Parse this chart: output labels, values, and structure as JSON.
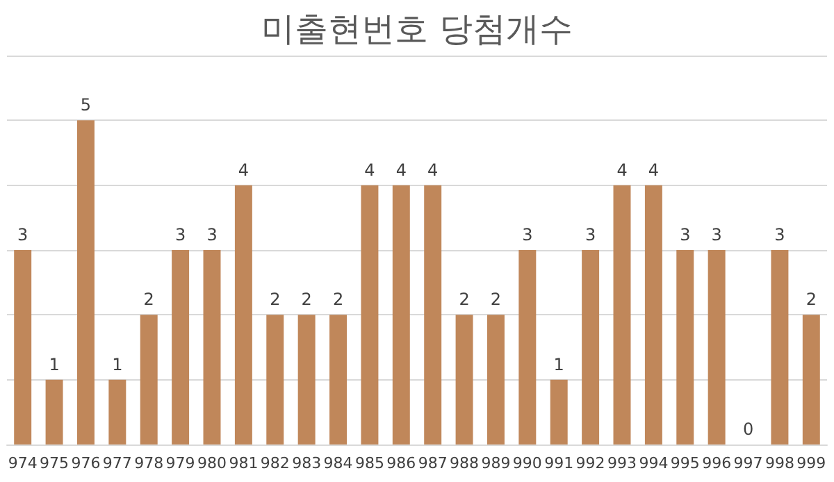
{
  "chart_data": {
    "type": "bar",
    "title": "미출현번호 당첨개수",
    "categories": [
      "974",
      "975",
      "976",
      "977",
      "978",
      "979",
      "980",
      "981",
      "982",
      "983",
      "984",
      "985",
      "986",
      "987",
      "988",
      "989",
      "990",
      "991",
      "992",
      "993",
      "994",
      "995",
      "996",
      "997",
      "998",
      "999"
    ],
    "values": [
      3,
      1,
      5,
      1,
      2,
      3,
      3,
      4,
      2,
      2,
      2,
      4,
      4,
      4,
      2,
      2,
      3,
      1,
      3,
      4,
      4,
      3,
      3,
      0,
      3,
      2
    ],
    "color": "#c0875a",
    "ylim": [
      0,
      6
    ],
    "yticks": [
      0,
      1,
      2,
      3,
      4,
      5,
      6
    ],
    "grid": "y",
    "tick_labels": "x",
    "data_labels": true
  }
}
